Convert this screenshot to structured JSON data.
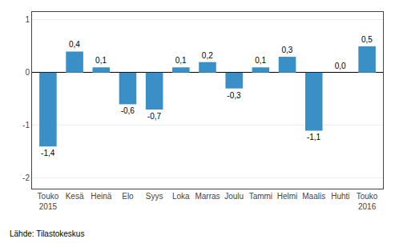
{
  "chart_data": {
    "type": "bar",
    "categories": [
      "Touko\n2015",
      "Kesä",
      "Heinä",
      "Elo",
      "Syys",
      "Loka",
      "Marras",
      "Joulu",
      "Tammi",
      "Helmi",
      "Maalis",
      "Huhti",
      "Touko\n2016"
    ],
    "values": [
      -1.4,
      0.4,
      0.1,
      -0.6,
      -0.7,
      0.1,
      0.2,
      -0.3,
      0.1,
      0.3,
      -1.1,
      0.0,
      0.5
    ],
    "value_labels": [
      "-1,4",
      "0,4",
      "0,1",
      "-0,6",
      "-0,7",
      "0,1",
      "0,2",
      "-0,3",
      "0,1",
      "0,3",
      "-1,1",
      "0,0",
      "0,5"
    ],
    "data_labels": true,
    "color": "#3a8fc7",
    "ylim": [
      -2.2,
      1.15
    ],
    "yticks": [
      -2,
      -1,
      0,
      1
    ],
    "grid": true,
    "annotations": [
      "Lähde: Tilastokeskus"
    ]
  }
}
